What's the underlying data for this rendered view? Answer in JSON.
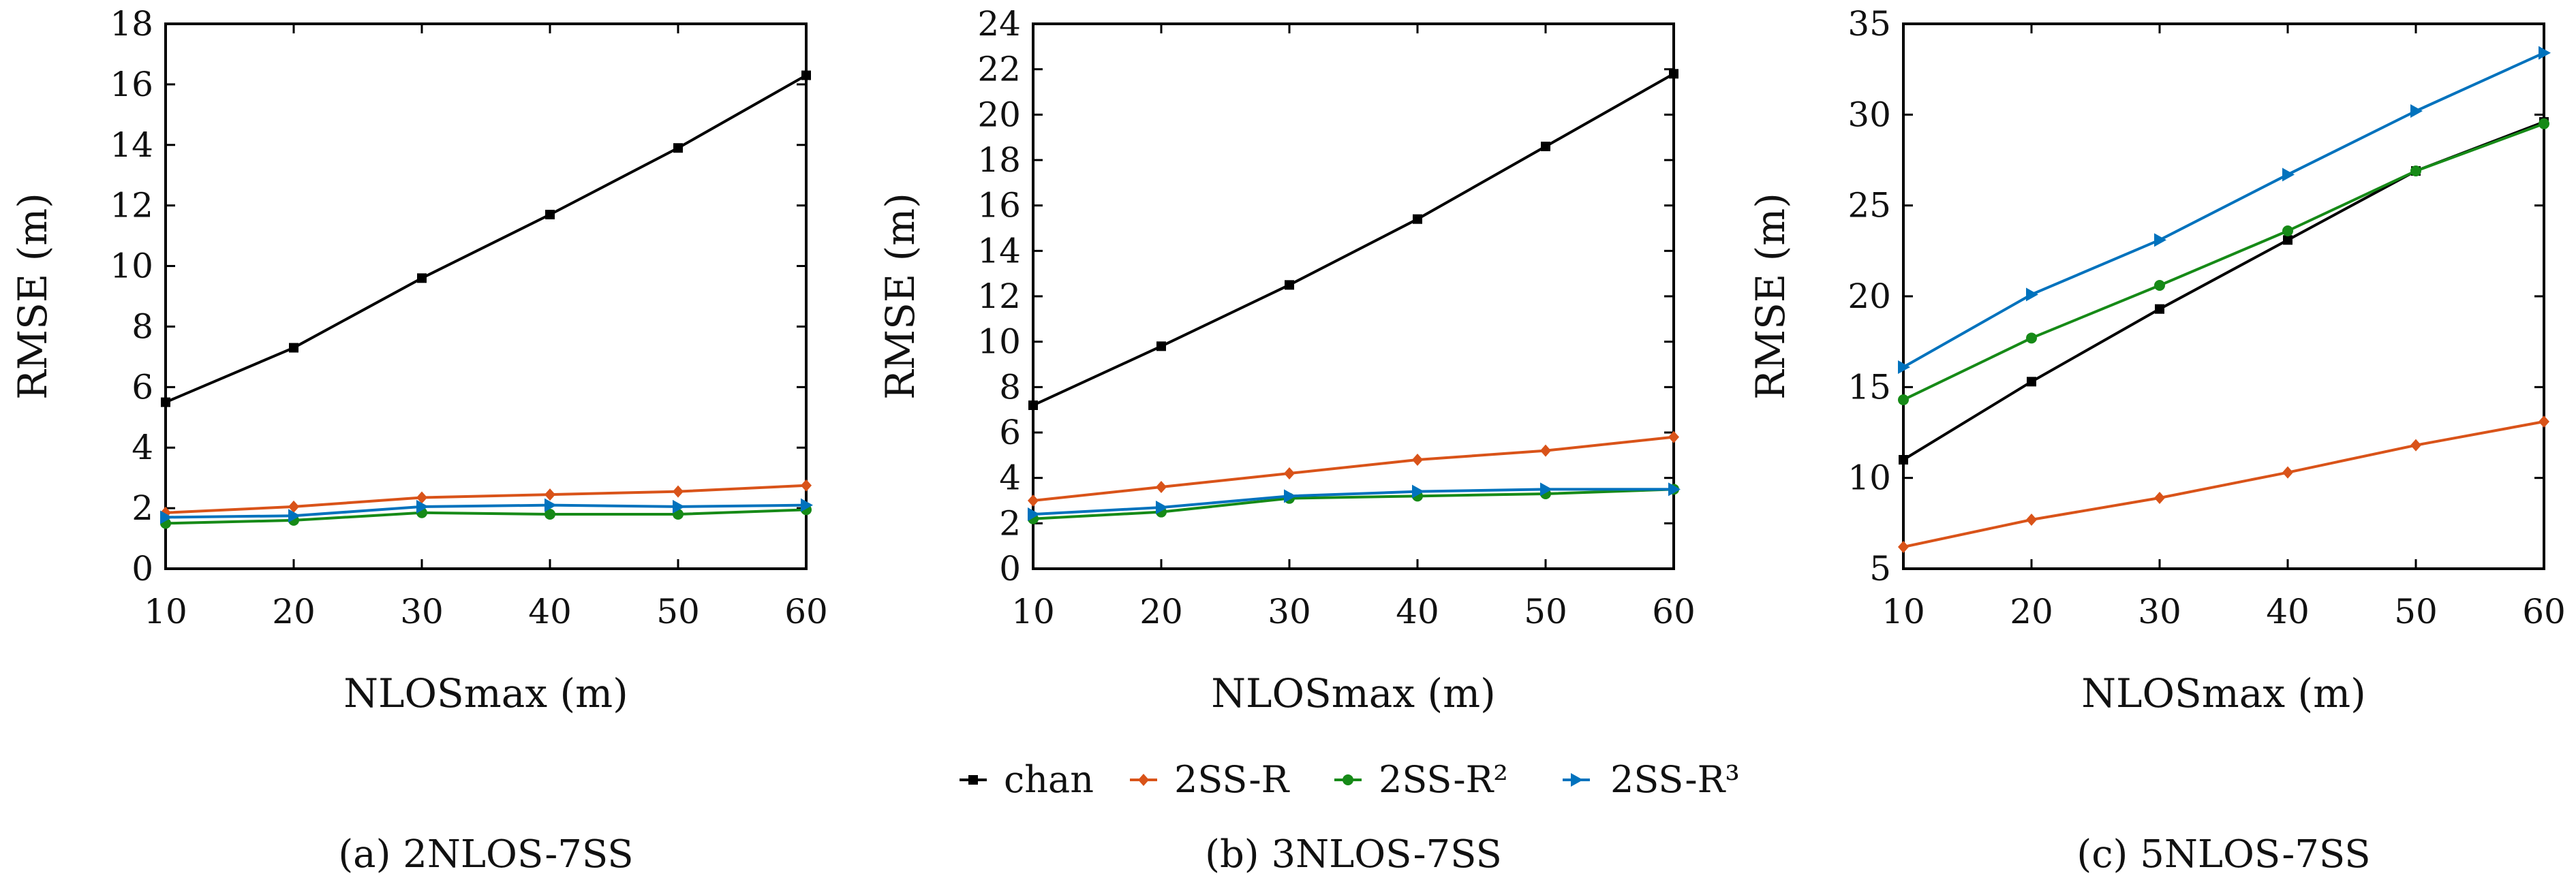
{
  "colors": {
    "chan": "#000000",
    "2SS-R": "#d95319",
    "2SS-R²": "#168a17",
    "2SS-R³": "#0072bd"
  },
  "legend": {
    "items": [
      {
        "label": "chan",
        "marker": "square"
      },
      {
        "label": "2SS-R",
        "marker": "diamond"
      },
      {
        "label": "2SS-R²",
        "marker": "circle"
      },
      {
        "label": "2SS-R³",
        "marker": "triangle-right"
      }
    ]
  },
  "chart_data": [
    {
      "type": "line",
      "caption": "(a) 2NLOS-7SS",
      "xlabel": "NLOSmax (m)",
      "ylabel": "RMSE (m)",
      "x": [
        10,
        20,
        30,
        40,
        50,
        60
      ],
      "xlim": [
        10,
        60
      ],
      "ylim": [
        0,
        18
      ],
      "yticks": [
        0,
        2,
        4,
        6,
        8,
        10,
        12,
        14,
        16,
        18
      ],
      "grid": false,
      "series": [
        {
          "name": "chan",
          "values": [
            5.5,
            7.3,
            9.6,
            11.7,
            13.9,
            16.3
          ]
        },
        {
          "name": "2SS-R",
          "values": [
            1.85,
            2.05,
            2.35,
            2.45,
            2.55,
            2.75
          ]
        },
        {
          "name": "2SS-R²",
          "values": [
            1.5,
            1.6,
            1.85,
            1.8,
            1.8,
            1.95
          ]
        },
        {
          "name": "2SS-R³",
          "values": [
            1.7,
            1.75,
            2.05,
            2.1,
            2.05,
            2.1
          ]
        }
      ]
    },
    {
      "type": "line",
      "caption": "(b) 3NLOS-7SS",
      "xlabel": "NLOSmax (m)",
      "ylabel": "RMSE (m)",
      "x": [
        10,
        20,
        30,
        40,
        50,
        60
      ],
      "xlim": [
        10,
        60
      ],
      "ylim": [
        0,
        24
      ],
      "yticks": [
        0,
        2,
        4,
        6,
        8,
        10,
        12,
        14,
        16,
        18,
        20,
        22,
        24
      ],
      "grid": false,
      "series": [
        {
          "name": "chan",
          "values": [
            7.2,
            9.8,
            12.5,
            15.4,
            18.6,
            21.8
          ]
        },
        {
          "name": "2SS-R",
          "values": [
            3.0,
            3.6,
            4.2,
            4.8,
            5.2,
            5.8
          ]
        },
        {
          "name": "2SS-R²",
          "values": [
            2.2,
            2.5,
            3.1,
            3.2,
            3.3,
            3.5
          ]
        },
        {
          "name": "2SS-R³",
          "values": [
            2.4,
            2.7,
            3.2,
            3.4,
            3.5,
            3.5
          ]
        }
      ]
    },
    {
      "type": "line",
      "caption": "(c) 5NLOS-7SS",
      "xlabel": "NLOSmax (m)",
      "ylabel": "RMSE (m)",
      "x": [
        10,
        20,
        30,
        40,
        50,
        60
      ],
      "xlim": [
        10,
        60
      ],
      "ylim": [
        5,
        35
      ],
      "yticks": [
        5,
        10,
        15,
        20,
        25,
        30,
        35
      ],
      "grid": false,
      "series": [
        {
          "name": "chan",
          "values": [
            11.0,
            15.3,
            19.3,
            23.1,
            26.9,
            29.6
          ]
        },
        {
          "name": "2SS-R",
          "values": [
            6.2,
            7.7,
            8.9,
            10.3,
            11.8,
            13.1
          ]
        },
        {
          "name": "2SS-R²",
          "values": [
            14.3,
            17.7,
            20.6,
            23.6,
            26.9,
            29.5
          ]
        },
        {
          "name": "2SS-R³",
          "values": [
            16.1,
            20.1,
            23.1,
            26.7,
            30.2,
            33.4
          ]
        }
      ]
    }
  ]
}
